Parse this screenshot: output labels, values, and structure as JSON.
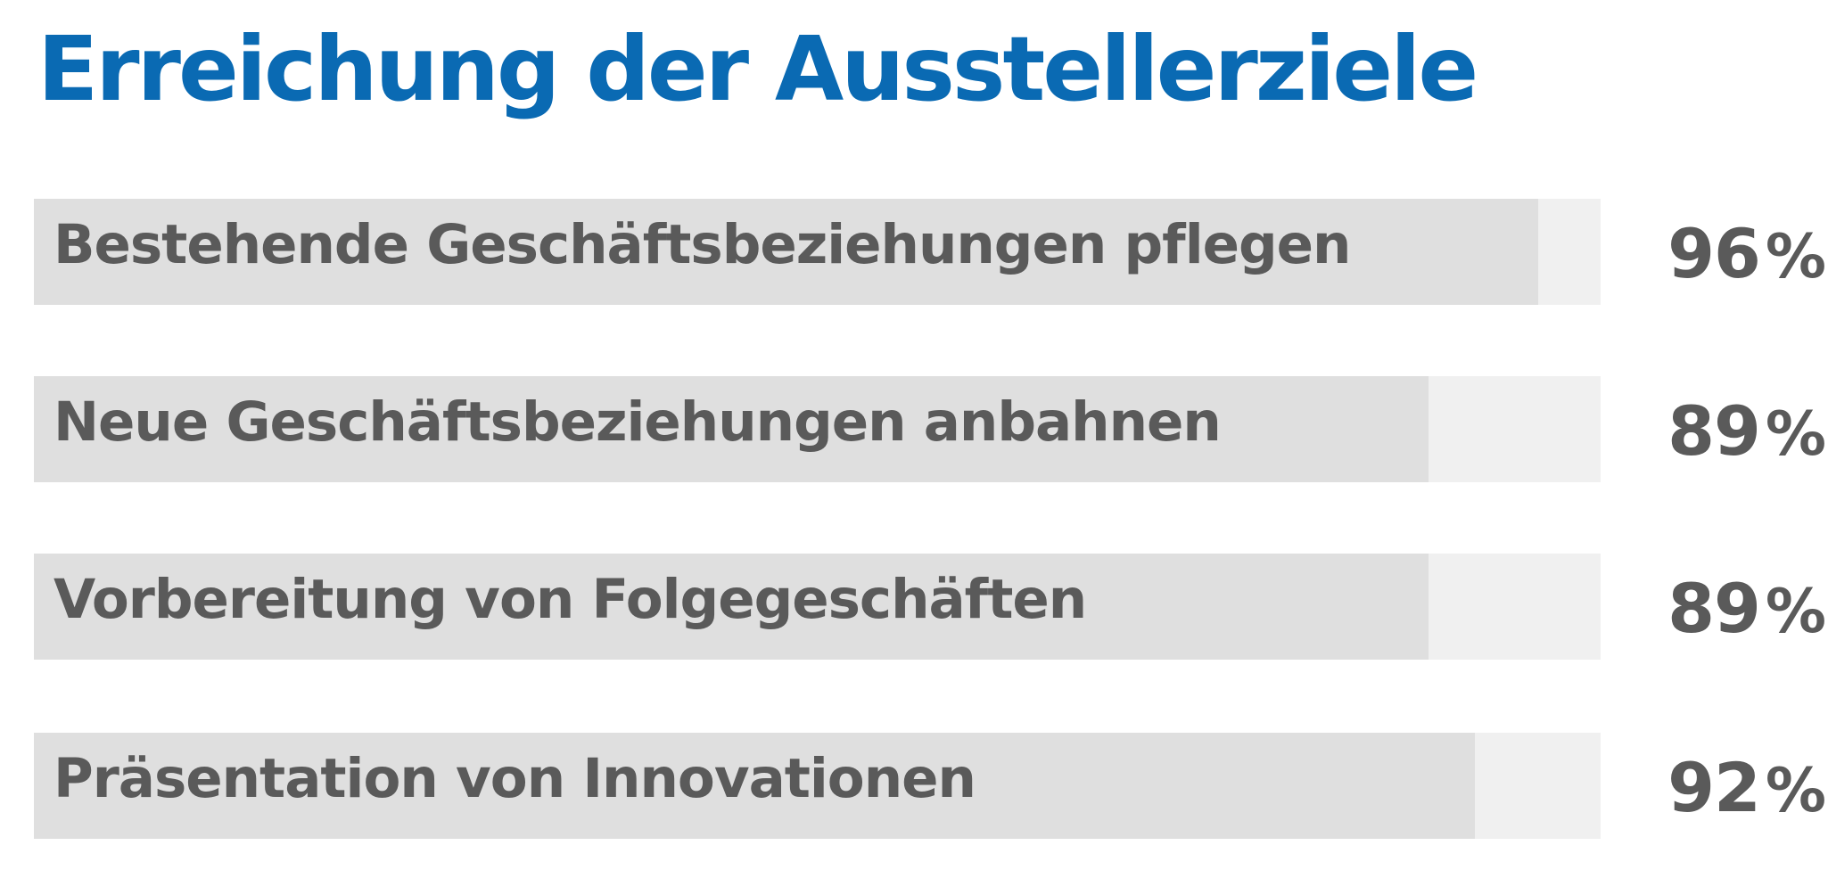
{
  "chart_data": {
    "type": "bar",
    "orientation": "horizontal",
    "title": "Erreichung der Ausstellerziele",
    "categories": [
      "Bestehende Geschäftsbeziehungen pflegen",
      "Neue Geschäftsbeziehungen anbahnen",
      "Vorbereitung von Folgegeschäften",
      "Präsentation von Innovationen"
    ],
    "values": [
      96,
      89,
      89,
      92
    ],
    "unit": "%",
    "xlim": [
      0,
      100
    ],
    "grid": false,
    "legend": "none",
    "data_labels": "right of bars"
  },
  "colors": {
    "title": "#0a6ab3",
    "text": "#5a5a5a",
    "bar_fill": "#dfdfdf",
    "bar_track": "#f0f0f0",
    "background": "#ffffff"
  }
}
